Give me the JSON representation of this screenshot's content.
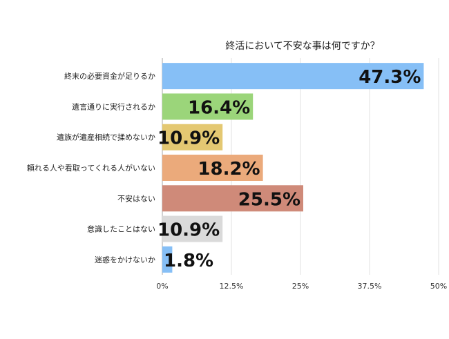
{
  "chart_data": {
    "type": "bar",
    "orientation": "horizontal",
    "title": "終活において不安な事は何ですか？",
    "xlabel": "",
    "ylabel": "",
    "categories": [
      "終末の必要資金が足りるか",
      "遺言通りに実行されるか",
      "遺族が遺産相続で揉めないか",
      "頼れる人や看取ってくれる人がいない",
      "不安はない",
      "意識したことはない",
      "迷惑をかけないか"
    ],
    "values": [
      47.3,
      16.4,
      10.9,
      18.2,
      25.5,
      10.9,
      1.8
    ],
    "value_labels": [
      "47.3%",
      "16.4%",
      "10.9%",
      "18.2%",
      "25.5%",
      "10.9%",
      "1.8%"
    ],
    "bar_colors": [
      "#86bff6",
      "#9bd57a",
      "#e4c872",
      "#ebaa7b",
      "#cf8a79",
      "#dadada",
      "#86bff6"
    ],
    "xlim": [
      0,
      50
    ],
    "xticks": [
      0,
      12.5,
      25,
      37.5,
      50
    ],
    "xtick_labels": [
      "0%",
      "12.5%",
      "25%",
      "37.5%",
      "50%"
    ],
    "grid": true,
    "legend": "none"
  }
}
